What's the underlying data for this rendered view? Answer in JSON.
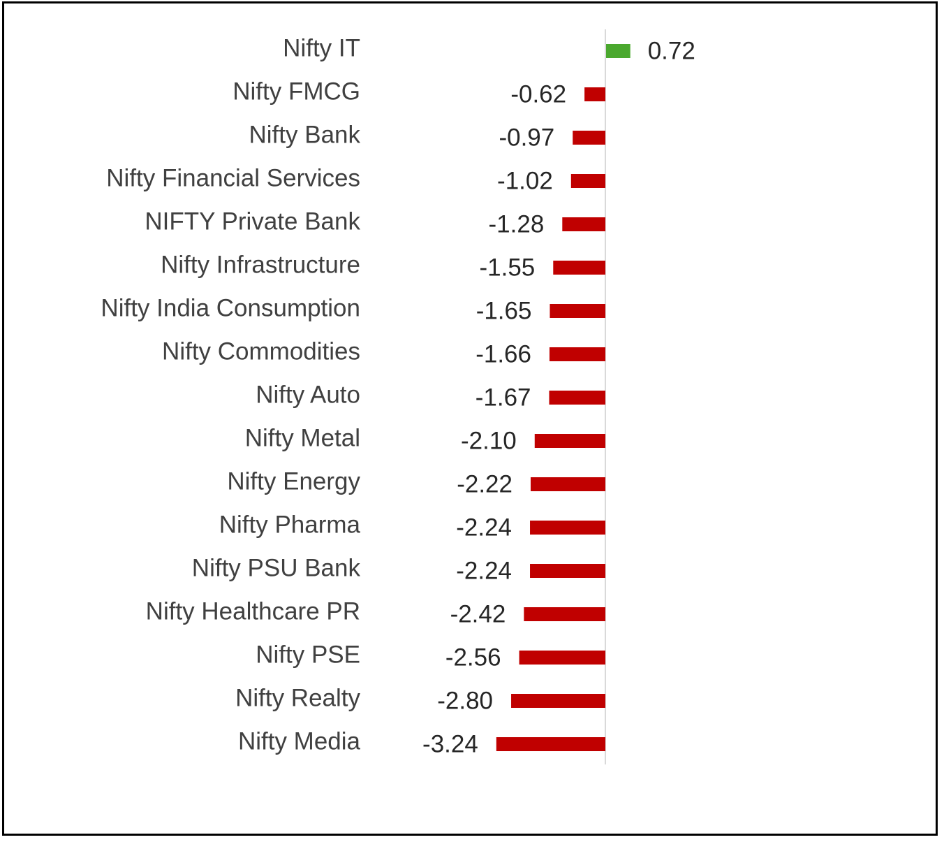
{
  "chart_data": {
    "type": "bar",
    "orientation": "horizontal",
    "categories": [
      "Nifty IT",
      "Nifty FMCG",
      "Nifty Bank",
      "Nifty Financial Services",
      "NIFTY Private Bank",
      "Nifty Infrastructure",
      "Nifty India Consumption",
      "Nifty Commodities",
      "Nifty Auto",
      "Nifty Metal",
      "Nifty Energy",
      "Nifty Pharma",
      "Nifty PSU Bank",
      "Nifty Healthcare PR",
      "Nifty PSE",
      "Nifty Realty",
      "Nifty Media"
    ],
    "values": [
      0.72,
      -0.62,
      -0.97,
      -1.02,
      -1.28,
      -1.55,
      -1.65,
      -1.66,
      -1.67,
      -2.1,
      -2.22,
      -2.24,
      -2.24,
      -2.42,
      -2.56,
      -2.8,
      -3.24
    ],
    "value_labels": [
      "0.72",
      "-0.62",
      "-0.97",
      "-1.02",
      "-1.28",
      "-1.55",
      "-1.65",
      "-1.66",
      "-1.67",
      "-2.10",
      "-2.22",
      "-2.24",
      "-2.24",
      "-2.42",
      "-2.56",
      "-2.80",
      "-3.24"
    ],
    "title": "",
    "xlabel": "",
    "ylabel": "",
    "xlim": [
      -3.24,
      0.72
    ],
    "grid": false,
    "legend": "none",
    "colors": {
      "positive": "#4aa82e",
      "negative": "#c00000",
      "axis": "#d9d9d9",
      "category_text": "#404040",
      "value_text": "#262626"
    }
  }
}
